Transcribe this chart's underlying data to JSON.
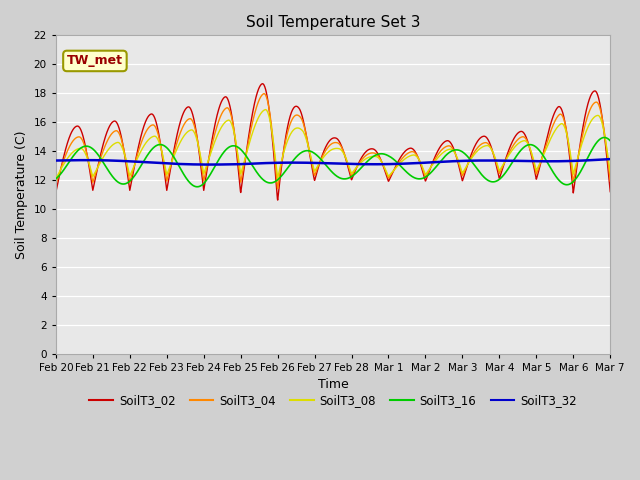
{
  "title": "Soil Temperature Set 3",
  "xlabel": "Time",
  "ylabel": "Soil Temperature (C)",
  "ylim": [
    0,
    22
  ],
  "yticks": [
    0,
    2,
    4,
    6,
    8,
    10,
    12,
    14,
    16,
    18,
    20,
    22
  ],
  "figsize": [
    6.4,
    4.8
  ],
  "dpi": 100,
  "fig_bg_color": "#d0d0d0",
  "plot_bg_color": "#e8e8e8",
  "grid_color": "#ffffff",
  "series_colors": {
    "SoilT3_02": "#cc0000",
    "SoilT3_04": "#ff8800",
    "SoilT3_08": "#dddd00",
    "SoilT3_16": "#00cc00",
    "SoilT3_32": "#0000cc"
  },
  "tick_labels": [
    "Feb 20",
    "Feb 21",
    "Feb 22",
    "Feb 23",
    "Feb 24",
    "Feb 25",
    "Feb 26",
    "Feb 27",
    "Feb 28",
    "Mar 1",
    "Mar 2",
    "Mar 3",
    "Mar 4",
    "Mar 5",
    "Mar 6",
    "Mar 7"
  ],
  "annotation_text": "TW_met",
  "annotation_color": "#990000",
  "annotation_bg": "#ffffcc",
  "annotation_border": "#999900",
  "legend_labels": [
    "SoilT3_02",
    "SoilT3_04",
    "SoilT3_08",
    "SoilT3_16",
    "SoilT3_32"
  ]
}
